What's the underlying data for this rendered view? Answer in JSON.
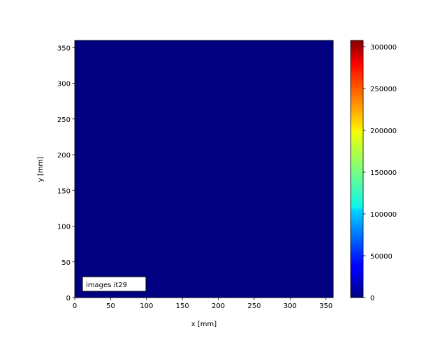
{
  "chart_data": {
    "type": "heatmap",
    "xlabel": "x [mm]",
    "ylabel": "y [mm]",
    "xlim": [
      0,
      360
    ],
    "ylim": [
      0,
      360
    ],
    "xticks": [
      0,
      50,
      100,
      150,
      200,
      250,
      300,
      350
    ],
    "yticks": [
      0,
      50,
      100,
      150,
      200,
      250,
      300,
      350
    ],
    "z": [
      [
        0
      ]
    ],
    "colormap": "jet",
    "colorbar": {
      "range": [
        0,
        307500
      ],
      "ticks": [
        0,
        50000,
        100000,
        150000,
        200000,
        250000,
        300000
      ]
    },
    "annotation": "images it29",
    "grid": false
  }
}
